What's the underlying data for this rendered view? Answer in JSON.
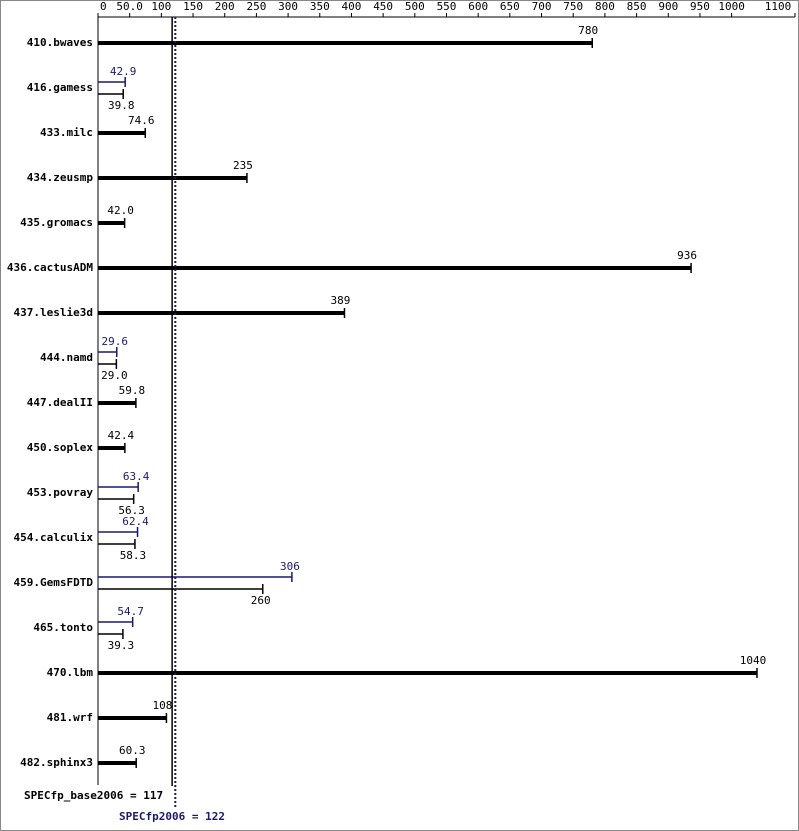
{
  "chart_data": {
    "type": "bar",
    "orientation": "horizontal",
    "categories": [
      "410.bwaves",
      "416.gamess",
      "433.milc",
      "434.zeusmp",
      "435.gromacs",
      "436.cactusADM",
      "437.leslie3d",
      "444.namd",
      "447.dealII",
      "450.soplex",
      "453.povray",
      "454.calculix",
      "459.GemsFDTD",
      "465.tonto",
      "470.lbm",
      "481.wrf",
      "482.sphinx3"
    ],
    "series": [
      {
        "name": "base",
        "color": "#000000",
        "values": [
          780,
          39.8,
          74.6,
          235,
          42.0,
          936,
          389,
          29.0,
          59.8,
          42.4,
          56.3,
          58.3,
          260,
          39.3,
          1040,
          108,
          60.3
        ],
        "value_labels": [
          "780",
          "39.8",
          "74.6",
          "235",
          "42.0",
          "936",
          "389",
          "29.0",
          "59.8",
          "42.4",
          "56.3",
          "58.3",
          "260",
          "39.3",
          "1040",
          "108",
          "60.3"
        ]
      },
      {
        "name": "peak",
        "color": "#191970",
        "values": [
          null,
          42.9,
          null,
          null,
          null,
          null,
          null,
          29.6,
          null,
          null,
          63.4,
          62.4,
          306,
          54.7,
          null,
          null,
          null
        ],
        "value_labels": [
          null,
          "42.9",
          null,
          null,
          null,
          null,
          null,
          "29.6",
          null,
          null,
          "63.4",
          "62.4",
          "306",
          "54.7",
          null,
          null,
          null
        ]
      }
    ],
    "xlim": [
      0,
      1100
    ],
    "xticks": [
      0,
      {
        "value": 50,
        "label": "50.0"
      },
      100,
      150,
      200,
      250,
      300,
      350,
      400,
      450,
      500,
      550,
      600,
      650,
      700,
      750,
      800,
      850,
      900,
      950,
      1000,
      1100
    ],
    "reference_lines": [
      {
        "label": "SPECfp_base2006 = 117",
        "value": 117,
        "color": "#000000",
        "style": "solid"
      },
      {
        "label": "SPECfp2006 = 122",
        "value": 122,
        "color": "#191970",
        "style": "dotted"
      }
    ]
  }
}
